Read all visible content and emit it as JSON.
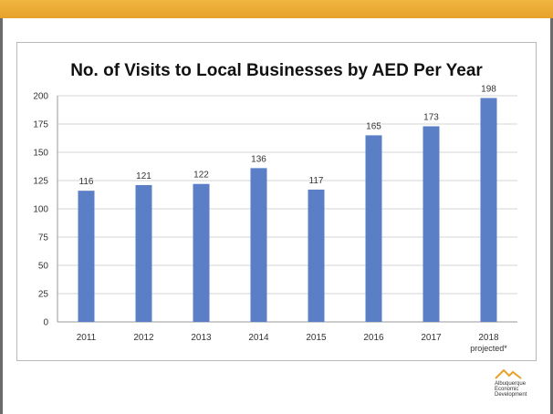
{
  "chart_data": {
    "type": "bar",
    "title": "No. of Visits to Local Businesses by AED Per Year",
    "categories": [
      "2011",
      "2012",
      "2013",
      "2014",
      "2015",
      "2016",
      "2017",
      "2018"
    ],
    "category_sublabels": [
      "",
      "",
      "",
      "",
      "",
      "",
      "",
      "projected*"
    ],
    "values": [
      116,
      121,
      122,
      136,
      117,
      165,
      173,
      198
    ],
    "ylim": [
      0,
      200
    ],
    "yticks": [
      0,
      25,
      50,
      75,
      100,
      125,
      150,
      175,
      200
    ],
    "grid": true,
    "legend": "none",
    "bar_color": "#5b7fc7"
  },
  "logo": {
    "lines": [
      "Albuquerque",
      "Economic",
      "Development"
    ],
    "accent_color": "#e7a12b"
  }
}
